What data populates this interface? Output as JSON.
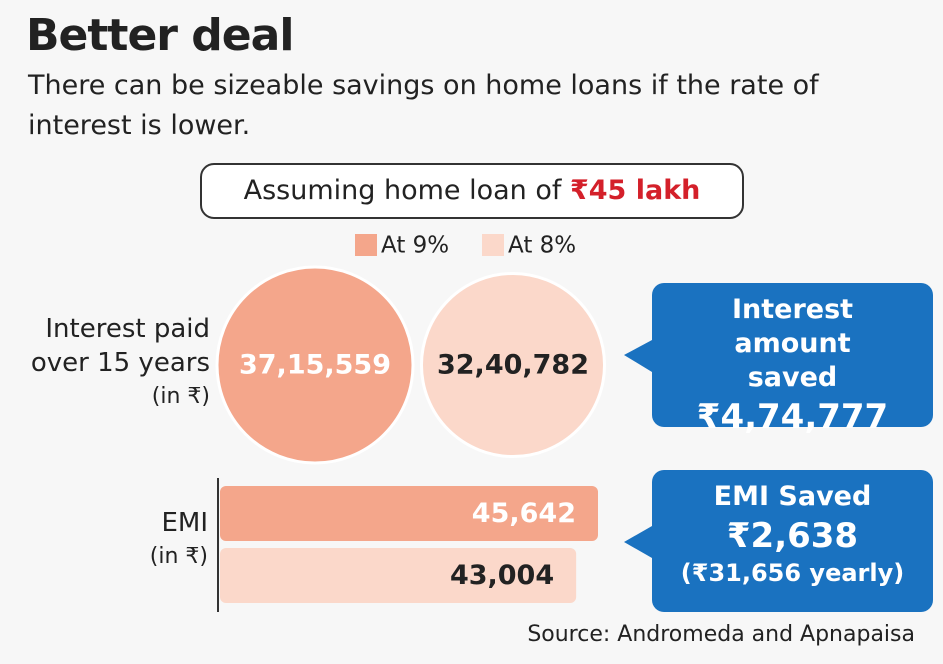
{
  "title": "Better deal",
  "subtitle": "There can be sizeable savings on home loans if the rate of interest is lower.",
  "assumption": {
    "text": "Assuming home loan of",
    "amount": "₹45 lakh"
  },
  "chart_data": [
    {
      "type": "bubble",
      "label": "Interest paid over 15 years",
      "unit": "(in ₹)",
      "series": [
        {
          "name": "At 9%",
          "color": "#f4a68b",
          "values": [
            3715559
          ],
          "value_labels": [
            "37,15,559"
          ]
        },
        {
          "name": "At 8%",
          "color": "#fbd8ca",
          "values": [
            3240782
          ],
          "value_labels": [
            "32,40,782"
          ]
        }
      ]
    },
    {
      "type": "bar",
      "label": "EMI",
      "unit": "(in ₹)",
      "series": [
        {
          "name": "At 9%",
          "color": "#f4a68b",
          "values": [
            45642
          ],
          "value_labels": [
            "45,642"
          ]
        },
        {
          "name": "At 8%",
          "color": "#fbd8ca",
          "values": [
            43004
          ],
          "value_labels": [
            "43,004"
          ]
        }
      ]
    }
  ],
  "callouts": [
    {
      "title": "Interest amount saved",
      "value": "₹4,74,777"
    },
    {
      "title": "EMI Saved",
      "value": "₹2,638",
      "note": "(₹31,656 yearly)"
    }
  ],
  "source": "Source: Andromeda and Apnapaisa"
}
